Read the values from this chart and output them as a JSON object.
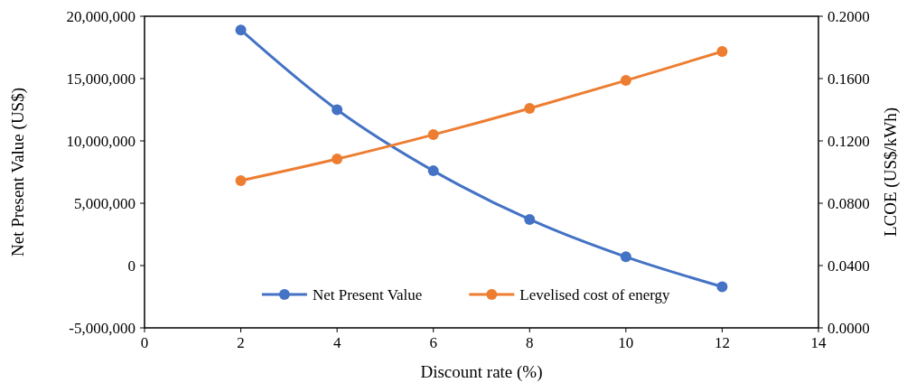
{
  "chart_data": {
    "type": "line",
    "xlabel": "Discount rate (%)",
    "ylabel": "Net Present Value (US$)",
    "y2label": "LCOE (US$/kWh)",
    "x": [
      2,
      4,
      6,
      8,
      10,
      12
    ],
    "series": [
      {
        "name": "Net Present Value",
        "color": "#4472c4",
        "values": [
          18900000,
          12500000,
          7600000,
          3700000,
          700000,
          -1700000
        ]
      },
      {
        "name": "Levelised cost of energy",
        "color": "#ed7d31",
        "axis": "y2",
        "values": [
          0.0945,
          0.1084,
          0.124,
          0.1409,
          0.1588,
          0.1774
        ]
      }
    ],
    "xlim": [
      0,
      14
    ],
    "xticks": [
      0,
      2,
      4,
      6,
      8,
      10,
      12,
      14
    ],
    "ylim": [
      -5000000,
      20000000
    ],
    "yticks": [
      {
        "value": -5000000,
        "label": "-5,000,000"
      },
      {
        "value": 0,
        "label": "0"
      },
      {
        "value": 5000000,
        "label": "5,000,000"
      },
      {
        "value": 10000000,
        "label": "10,000,000"
      },
      {
        "value": 15000000,
        "label": "15,000,000"
      },
      {
        "value": 20000000,
        "label": "20,000,000"
      }
    ],
    "y2lim": [
      0,
      0.2
    ],
    "y2ticks": [
      {
        "value": 0,
        "label": "0.0000"
      },
      {
        "value": 0.04,
        "label": "0.0400"
      },
      {
        "value": 0.08,
        "label": "0.0800"
      },
      {
        "value": 0.12,
        "label": "0.1200"
      },
      {
        "value": 0.16,
        "label": "0.1600"
      },
      {
        "value": 0.2,
        "label": "0.2000"
      }
    ],
    "marker": "circle",
    "line_style": "solid",
    "legend": "bottom",
    "grid": false
  }
}
